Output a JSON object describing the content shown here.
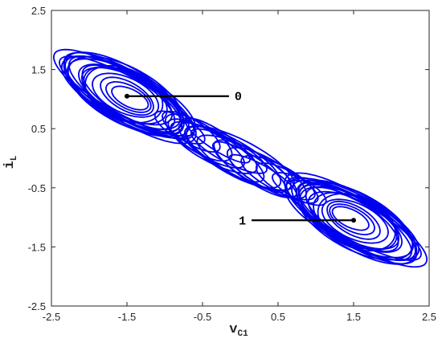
{
  "chart_data": {
    "type": "line",
    "title": "",
    "xlabel": "v",
    "xlabel_sub": "C1",
    "ylabel": "i",
    "ylabel_sub": "L",
    "xlim": [
      -2.5,
      2.5
    ],
    "ylim": [
      -2.5,
      2.5
    ],
    "xticks": [
      -2.5,
      -1.5,
      -0.5,
      0.5,
      1.5,
      2.5
    ],
    "yticks": [
      2.5,
      1.5,
      0.5,
      -0.5,
      -1.5,
      -2.5
    ],
    "xtick_labels": [
      "-2.5",
      "-1.5",
      "-0.5",
      "0.5",
      "1.5",
      "2.5"
    ],
    "ytick_labels": [
      "2.5",
      "1.5",
      "0.5",
      "-0.5",
      "-1.5",
      "-2.5"
    ],
    "grid": false,
    "color": "#0000f0",
    "series": [
      {
        "description_free": true,
        "attractor_centers": [
          [
            -1.5,
            1.05
          ],
          [
            1.5,
            -1.05
          ]
        ]
      }
    ],
    "annotations": [
      {
        "label": "0",
        "point": [
          -1.5,
          1.05
        ],
        "line_to": [
          -0.15,
          1.05
        ]
      },
      {
        "label": "1",
        "point": [
          1.5,
          -1.05
        ],
        "line_to": [
          0.15,
          -1.05
        ]
      }
    ]
  }
}
